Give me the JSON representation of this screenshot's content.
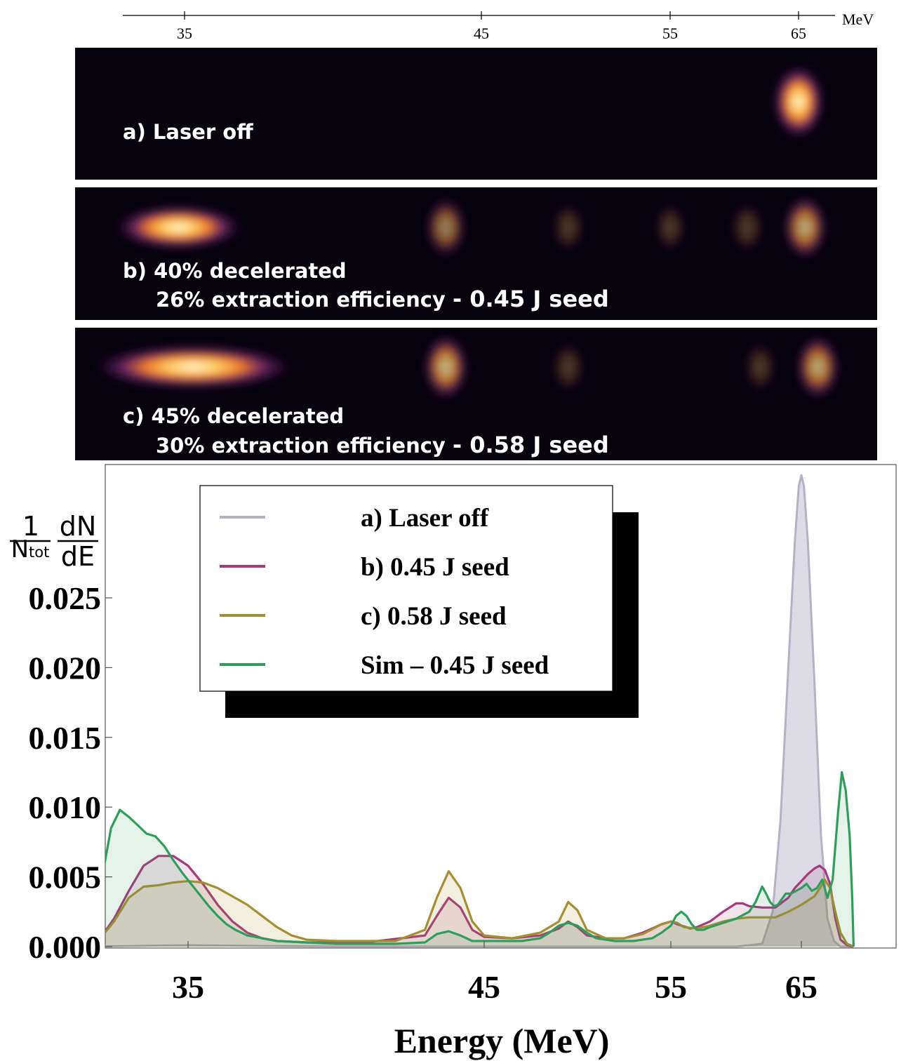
{
  "top_axis": {
    "unit": "MeV",
    "ticks": [
      "35",
      "45",
      "55",
      "65"
    ],
    "tick_values": [
      35,
      45,
      55,
      65
    ]
  },
  "panels": [
    {
      "label_line1": "a) Laser off",
      "label_line2": "",
      "seed": "",
      "blobs": [
        {
          "energy": 65,
          "intensity": 1.0,
          "shape": "round"
        }
      ]
    },
    {
      "label_line1": "b) 40% decelerated",
      "label_line2": "26% extraction efficiency",
      "seed": "- 0.45 J seed",
      "blobs": [
        {
          "energy": 34.8,
          "intensity": 1.0,
          "shape": "wide"
        },
        {
          "energy": 43.8,
          "intensity": 0.55,
          "shape": "round"
        },
        {
          "energy": 49.6,
          "intensity": 0.15,
          "shape": "round"
        },
        {
          "energy": 55,
          "intensity": 0.12,
          "shape": "round"
        },
        {
          "energy": 61,
          "intensity": 0.2,
          "shape": "round"
        },
        {
          "energy": 65.5,
          "intensity": 0.7,
          "shape": "round"
        }
      ]
    },
    {
      "label_line1": "c) 45% decelerated",
      "label_line2": "30% extraction efficiency",
      "seed": "- 0.58 J seed",
      "blobs": [
        {
          "energy": 35.3,
          "intensity": 1.0,
          "shape": "long"
        },
        {
          "energy": 43.8,
          "intensity": 0.75,
          "shape": "round"
        },
        {
          "energy": 49.6,
          "intensity": 0.18,
          "shape": "round"
        },
        {
          "energy": 62,
          "intensity": 0.15,
          "shape": "round"
        },
        {
          "energy": 66.5,
          "intensity": 0.7,
          "shape": "round"
        }
      ]
    }
  ],
  "colors": {
    "laser_off": "#b4b2c4",
    "seed_045": "#a53a7d",
    "seed_058": "#a58f32",
    "sim_045": "#2f9e5c"
  },
  "chart_data": {
    "type": "line",
    "xlabel": "Energy (MeV)",
    "ylabel_num": "1",
    "ylabel_den": "Ntot",
    "ylabel_num2": "dN",
    "ylabel_den2": "dE",
    "xlim": [
      31.5,
      69
    ],
    "ylim": [
      0.0,
      0.0344
    ],
    "xticks": [
      35,
      45,
      55,
      65
    ],
    "xtick_labels": [
      "35",
      "45",
      "55",
      "65"
    ],
    "yticks": [
      0.0,
      0.005,
      0.01,
      0.015,
      0.02,
      0.025
    ],
    "ytick_labels": [
      "0.000",
      "0.005",
      "0.010",
      "0.015",
      "0.020",
      "0.025"
    ],
    "grid": false,
    "legend_position": "top-left",
    "series": [
      {
        "name": "a) Laser off",
        "fill": true,
        "x": [
          31.5,
          35,
          40,
          45,
          50,
          55,
          60,
          62,
          62.8,
          63.4,
          64.0,
          64.5,
          64.8,
          65.0,
          65.2,
          65.5,
          66.0,
          66.5,
          67.0,
          67.5,
          68.0,
          69.0
        ],
        "y": [
          0.0,
          0.0001,
          0.0,
          0.0,
          0.0,
          0.0,
          0.0,
          0.0002,
          0.0025,
          0.009,
          0.02,
          0.029,
          0.033,
          0.0338,
          0.033,
          0.029,
          0.019,
          0.008,
          0.002,
          0.0004,
          0.0,
          0.0
        ]
      },
      {
        "name": "b) 0.45 J seed",
        "fill": true,
        "x": [
          31.5,
          32.0,
          32.5,
          33.0,
          33.5,
          34.0,
          34.5,
          35.0,
          35.5,
          36.0,
          36.5,
          37.0,
          37.5,
          38.0,
          39.0,
          41.0,
          43.0,
          43.4,
          43.8,
          44.2,
          44.6,
          45.0,
          46.5,
          48.0,
          49.0,
          49.5,
          50.0,
          50.5,
          51.5,
          52.5,
          53.5,
          54.5,
          55.0,
          55.5,
          56.5,
          57.0,
          58.0,
          59.0,
          60.0,
          60.5,
          61.0,
          62.0,
          63.0,
          64.0,
          64.5,
          65.0,
          65.5,
          66.0,
          66.4,
          66.8,
          67.2,
          67.6,
          68.0,
          68.5,
          69.0
        ],
        "y": [
          0.0,
          0.0005,
          0.002,
          0.004,
          0.0058,
          0.0065,
          0.0065,
          0.0058,
          0.0045,
          0.003,
          0.0018,
          0.001,
          0.0006,
          0.0004,
          0.0003,
          0.0003,
          0.0008,
          0.0022,
          0.0035,
          0.0028,
          0.0012,
          0.0007,
          0.0006,
          0.0008,
          0.0013,
          0.0018,
          0.0014,
          0.0008,
          0.0006,
          0.0006,
          0.001,
          0.0016,
          0.0018,
          0.0016,
          0.0013,
          0.0014,
          0.0018,
          0.0025,
          0.0031,
          0.0031,
          0.0029,
          0.0028,
          0.0028,
          0.0035,
          0.0042,
          0.0047,
          0.0052,
          0.0056,
          0.0058,
          0.0055,
          0.0045,
          0.002,
          0.0005,
          0.0001,
          0.0
        ]
      },
      {
        "name": "c) 0.58 J seed",
        "fill": true,
        "x": [
          31.5,
          32.0,
          32.5,
          33.0,
          33.5,
          34.0,
          34.5,
          35.0,
          35.5,
          36.0,
          36.5,
          37.0,
          37.5,
          38.0,
          38.5,
          39.0,
          40.0,
          42.0,
          43.0,
          43.4,
          43.8,
          44.2,
          44.6,
          45.0,
          46.5,
          48.0,
          49.0,
          49.5,
          50.0,
          50.5,
          51.5,
          52.5,
          53.5,
          54.5,
          55.0,
          55.5,
          56.0,
          57.0,
          58.0,
          59.0,
          60.0,
          61.0,
          62.0,
          63.0,
          64.0,
          65.0,
          66.0,
          66.5,
          66.8,
          67.2,
          67.6,
          68.0,
          68.5,
          69.0
        ],
        "y": [
          0.0,
          0.0005,
          0.0018,
          0.0035,
          0.0043,
          0.0044,
          0.0046,
          0.0047,
          0.0046,
          0.0042,
          0.0036,
          0.003,
          0.0022,
          0.0014,
          0.0008,
          0.0005,
          0.0004,
          0.0004,
          0.0012,
          0.0035,
          0.0054,
          0.0042,
          0.0018,
          0.0008,
          0.0006,
          0.001,
          0.0018,
          0.0032,
          0.0026,
          0.0012,
          0.0006,
          0.0006,
          0.0009,
          0.0016,
          0.0018,
          0.0017,
          0.0014,
          0.0013,
          0.0015,
          0.0018,
          0.002,
          0.0021,
          0.0021,
          0.0021,
          0.0025,
          0.003,
          0.0036,
          0.0043,
          0.0048,
          0.0042,
          0.0025,
          0.001,
          0.0002,
          0.0
        ]
      },
      {
        "name": "Sim – 0.45 J seed",
        "fill": true,
        "x": [
          31.5,
          31.8,
          32.1,
          32.4,
          32.7,
          33.0,
          33.3,
          33.6,
          33.9,
          34.2,
          34.5,
          34.8,
          35.1,
          35.4,
          35.7,
          36.0,
          36.3,
          36.6,
          37.0,
          37.5,
          38.0,
          39.0,
          40.0,
          41.0,
          42.0,
          43.0,
          43.4,
          43.8,
          44.2,
          44.6,
          45.0,
          46.0,
          47.0,
          48.0,
          48.5,
          49.0,
          49.5,
          50.0,
          50.5,
          51.0,
          52.0,
          53.0,
          54.0,
          54.5,
          55.0,
          55.4,
          55.8,
          56.2,
          56.6,
          57.0,
          57.5,
          58.0,
          59.0,
          60.0,
          61.0,
          61.5,
          62.0,
          62.3,
          62.6,
          62.9,
          63.2,
          63.5,
          63.8,
          64.2,
          64.6,
          65.0,
          65.4,
          65.8,
          66.2,
          66.6,
          67.0,
          67.4,
          67.8,
          68.1,
          68.4,
          68.7,
          68.9,
          69.0
        ],
        "y": [
          0.0,
          0.0015,
          0.005,
          0.0085,
          0.0098,
          0.0093,
          0.0087,
          0.0081,
          0.0079,
          0.0072,
          0.0062,
          0.0053,
          0.0045,
          0.0037,
          0.0029,
          0.0022,
          0.0016,
          0.0012,
          0.0008,
          0.0006,
          0.0004,
          0.0003,
          0.0002,
          0.0002,
          0.0002,
          0.0003,
          0.0009,
          0.0011,
          0.0008,
          0.0004,
          0.0004,
          0.0004,
          0.0004,
          0.0006,
          0.001,
          0.0015,
          0.0017,
          0.0015,
          0.001,
          0.0006,
          0.0004,
          0.0004,
          0.0006,
          0.001,
          0.0015,
          0.0022,
          0.0025,
          0.0022,
          0.0016,
          0.0012,
          0.0012,
          0.0014,
          0.0017,
          0.002,
          0.0025,
          0.0032,
          0.0043,
          0.0038,
          0.0032,
          0.0029,
          0.003,
          0.0034,
          0.0038,
          0.0038,
          0.004,
          0.0042,
          0.0045,
          0.004,
          0.0042,
          0.0048,
          0.0035,
          0.0048,
          0.0095,
          0.0125,
          0.0112,
          0.008,
          0.0035,
          0.0
        ]
      }
    ]
  }
}
